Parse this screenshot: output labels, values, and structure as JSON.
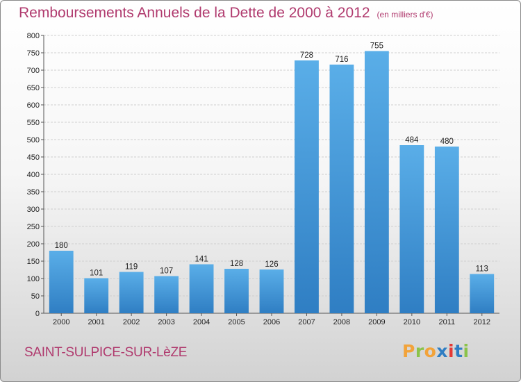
{
  "header": {
    "title": "Remboursements Annuels de la Dette de 2000 à 2012",
    "subtitle": "(en milliers d'€)"
  },
  "footer": {
    "commune": "SAINT-SULPICE-SUR-LèZE",
    "logo_text": "Proxiti"
  },
  "colors": {
    "title": "#b03a6e",
    "bar_top": "#5aaee8",
    "bar_bottom": "#2f7ec3",
    "logo_letters": [
      "#f2a33a",
      "#8bc34a",
      "#f2a33a",
      "#2f7ec3",
      "#e53935",
      "#2f7ec3",
      "#8bc34a"
    ]
  },
  "chart_data": {
    "type": "bar",
    "categories": [
      "2000",
      "2001",
      "2002",
      "2003",
      "2004",
      "2005",
      "2006",
      "2007",
      "2008",
      "2009",
      "2010",
      "2011",
      "2012"
    ],
    "values": [
      180,
      101,
      119,
      107,
      141,
      128,
      126,
      728,
      716,
      755,
      484,
      480,
      113
    ],
    "title": "Remboursements Annuels de la Dette de 2000 à 2012",
    "subtitle": "(en milliers d'€)",
    "xlabel": "",
    "ylabel": "",
    "ylim": [
      0,
      800
    ],
    "yticks": [
      0,
      50,
      100,
      150,
      200,
      250,
      300,
      350,
      400,
      450,
      500,
      550,
      600,
      650,
      700,
      750,
      800
    ],
    "grid": true,
    "legend": "none",
    "data_labels": true
  }
}
